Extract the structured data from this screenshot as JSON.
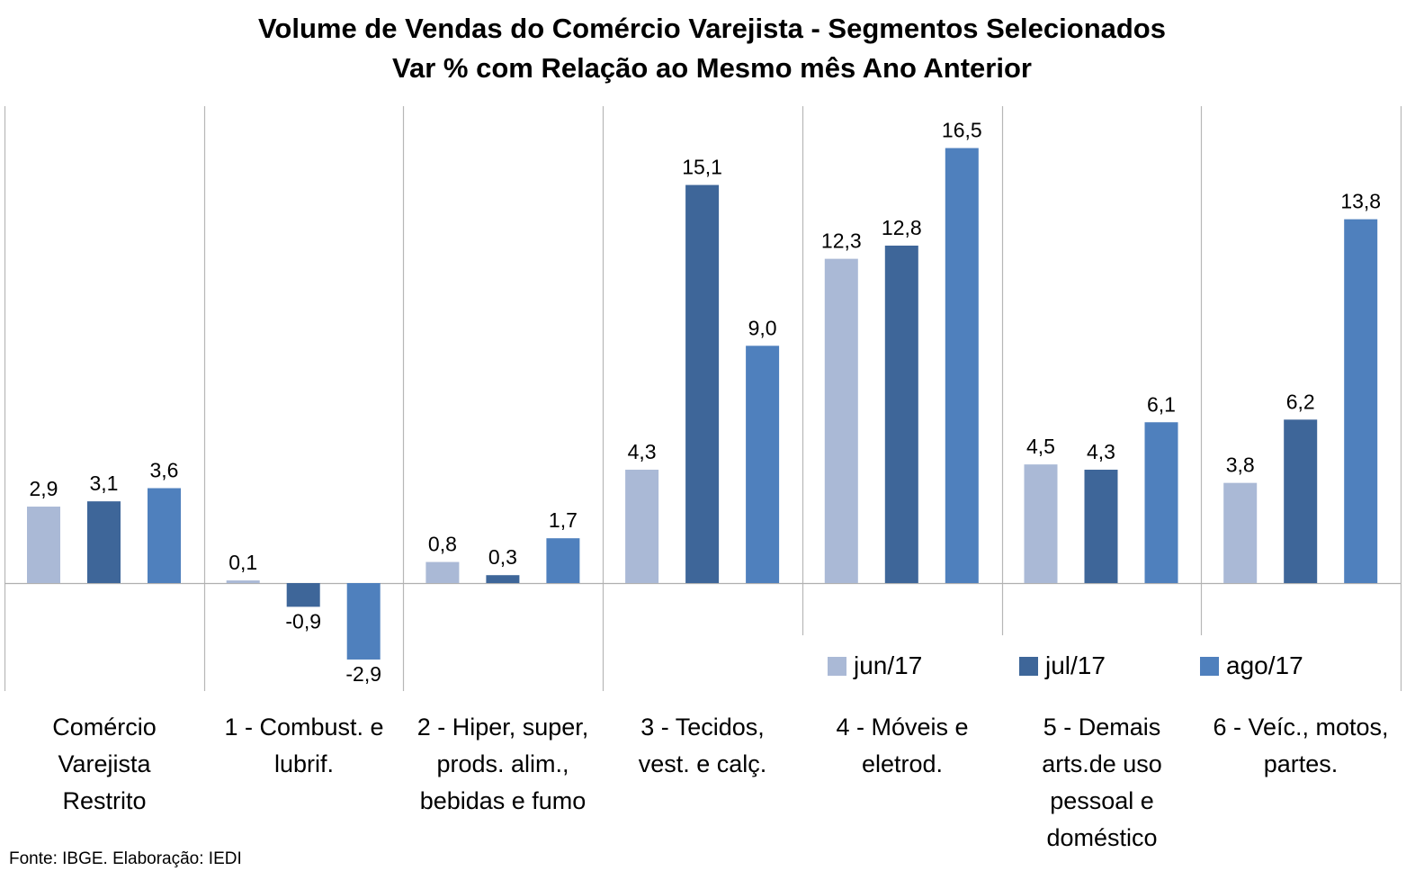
{
  "chart_data": {
    "type": "bar",
    "title": "Volume de Vendas do Comércio Varejista - Segmentos Selecionados",
    "subtitle": "Var % com Relação ao Mesmo mês Ano Anterior",
    "categories": [
      "Comércio Varejista Restrito",
      "1 - Combust. e lubrif.",
      "2 - Hiper, super, prods. alim., bebidas e fumo",
      "3 - Tecidos, vest. e calç.",
      "4 - Móveis e eletrod.",
      "5 - Demais arts.de uso pessoal e doméstico",
      "6 - Veíc., motos, partes."
    ],
    "series": [
      {
        "name": "jun/17",
        "color": "#aab9d6",
        "values": [
          2.9,
          0.1,
          0.8,
          4.3,
          12.3,
          4.5,
          3.8
        ],
        "labels": [
          "2,9",
          "0,1",
          "0,8",
          "4,3",
          "12,3",
          "4,5",
          "3,8"
        ]
      },
      {
        "name": "jul/17",
        "color": "#3e6699",
        "values": [
          3.1,
          -0.9,
          0.3,
          15.1,
          12.8,
          4.3,
          6.2
        ],
        "labels": [
          "3,1",
          "-0,9",
          "0,3",
          "15,1",
          "12,8",
          "4,3",
          "6,2"
        ]
      },
      {
        "name": "ago/17",
        "color": "#4f80bd",
        "values": [
          3.6,
          -2.9,
          1.7,
          9.0,
          16.5,
          6.1,
          13.8
        ],
        "labels": [
          "3,6",
          "-2,9",
          "1,7",
          "9,0",
          "16,5",
          "6,1",
          "13,8"
        ]
      }
    ],
    "ylim": [
      -4,
      18
    ],
    "grid": false,
    "legend_position": "bottom-right"
  },
  "category_label_lines": [
    [
      "Comércio",
      "Varejista",
      "Restrito"
    ],
    [
      "1 - Combust. e",
      "lubrif."
    ],
    [
      "2 - Hiper, super,",
      "prods. alim.,",
      "bebidas e fumo"
    ],
    [
      "3 - Tecidos,",
      "vest. e calç."
    ],
    [
      "4 - Móveis e",
      "eletrod."
    ],
    [
      "5 - Demais",
      "arts.de uso",
      "pessoal e",
      "doméstico"
    ],
    [
      "6 - Veíc., motos,",
      "partes."
    ]
  ],
  "source": "Fonte: IBGE. Elaboração: IEDI"
}
